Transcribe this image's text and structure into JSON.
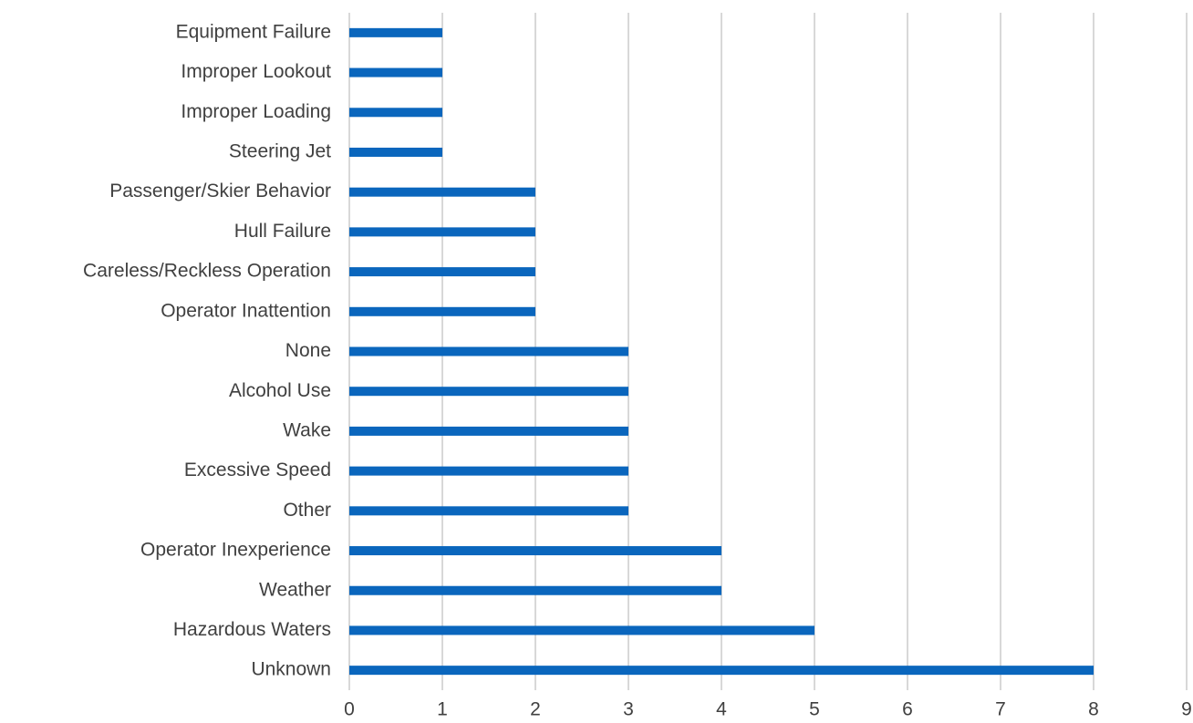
{
  "chart_data": {
    "type": "hbar",
    "categories": [
      "Equipment Failure",
      "Improper Lookout",
      "Improper Loading",
      "Steering Jet",
      "Passenger/Skier Behavior",
      "Hull Failure",
      "Careless/Reckless Operation",
      "Operator Inattention",
      "None",
      "Alcohol Use",
      "Wake",
      "Excessive Speed",
      "Other",
      "Operator Inexperience",
      "Weather",
      "Hazardous Waters",
      "Unknown"
    ],
    "values": [
      1,
      1,
      1,
      1,
      2,
      2,
      2,
      2,
      3,
      3,
      3,
      3,
      3,
      4,
      4,
      5,
      8
    ],
    "color": "#0a66bd",
    "xlim": [
      0,
      9
    ],
    "xticks": [
      0,
      1,
      2,
      3,
      4,
      5,
      6,
      7,
      8,
      9
    ],
    "grid": true
  }
}
